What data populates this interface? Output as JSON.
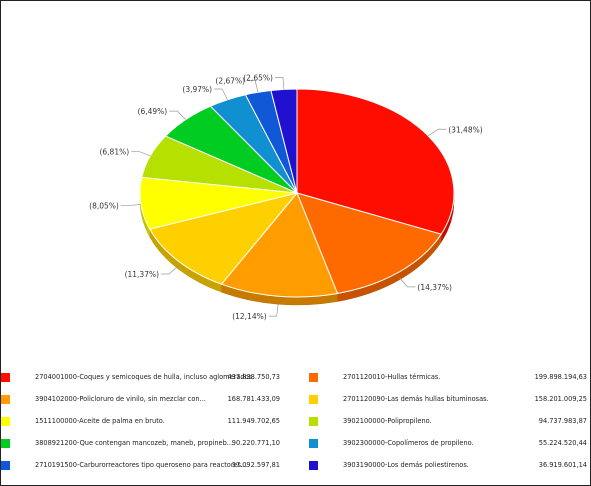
{
  "chart_data": {
    "type": "pie",
    "slices": [
      {
        "code_name": "2704001000-Coques y semicoques de hulla, incluso aglomerados.",
        "value_label": "437.838.750,73",
        "value": 437838750.73,
        "percent": 31.48,
        "percent_label": "(31,48%)",
        "color": "#ff0d00"
      },
      {
        "code_name": "2701120010-Hullas térmicas.",
        "value_label": "199.898.194,63",
        "value": 199898194.63,
        "percent": 14.37,
        "percent_label": "(14,37%)",
        "color": "#ff6a00"
      },
      {
        "code_name": "3904102000-Policloruro de vinilo,  sin mezclar con...",
        "value_label": "168.781.433,09",
        "value": 168781433.09,
        "percent": 12.14,
        "percent_label": "(12,14%)",
        "color": "#ff9d00"
      },
      {
        "code_name": "2701120090-Las demás hullas bituminosas.",
        "value_label": "158.201.009,25",
        "value": 158201009.25,
        "percent": 11.37,
        "percent_label": "(11,37%)",
        "color": "#ffd000"
      },
      {
        "code_name": "1511100000-Aceite de palma en bruto.",
        "value_label": "111.949.702,65",
        "value": 111949702.65,
        "percent": 8.05,
        "percent_label": "(8,05%)",
        "color": "#ffff00"
      },
      {
        "code_name": "3902100000-Polipropileno.",
        "value_label": "94.737.983,87",
        "value": 94737983.87,
        "percent": 6.81,
        "percent_label": "(6,81%)",
        "color": "#b5e000"
      },
      {
        "code_name": "3808921200-Que contengan mancozeb, maneb, propineb...",
        "value_label": "90.220.771,10",
        "value": 90220771.1,
        "percent": 6.49,
        "percent_label": "(6,49%)",
        "color": "#00cc22"
      },
      {
        "code_name": "3902300000-Copolímeros de propileno.",
        "value_label": "55.224.520,44",
        "value": 55224520.44,
        "percent": 3.97,
        "percent_label": "(3,97%)",
        "color": "#1090d0"
      },
      {
        "code_name": "2710191500-Carburorreactores tipo queroseno para reactores...",
        "value_label": "37.092.597,81",
        "value": 37092597.81,
        "percent": 2.67,
        "percent_label": "(2,67%)",
        "color": "#1058d8"
      },
      {
        "code_name": "3903190000-Los demás poliestirenos.",
        "value_label": "36.919.601,14",
        "value": 36919601.14,
        "percent": 2.65,
        "percent_label": "(2,65%)",
        "color": "#2010d0"
      }
    ]
  },
  "legend": {
    "rows": [
      {
        "left": 0,
        "right": 1
      },
      {
        "left": 2,
        "right": 3
      },
      {
        "left": 4,
        "right": 5
      },
      {
        "left": 6,
        "right": 7
      },
      {
        "left": 8,
        "right": 9
      }
    ]
  }
}
